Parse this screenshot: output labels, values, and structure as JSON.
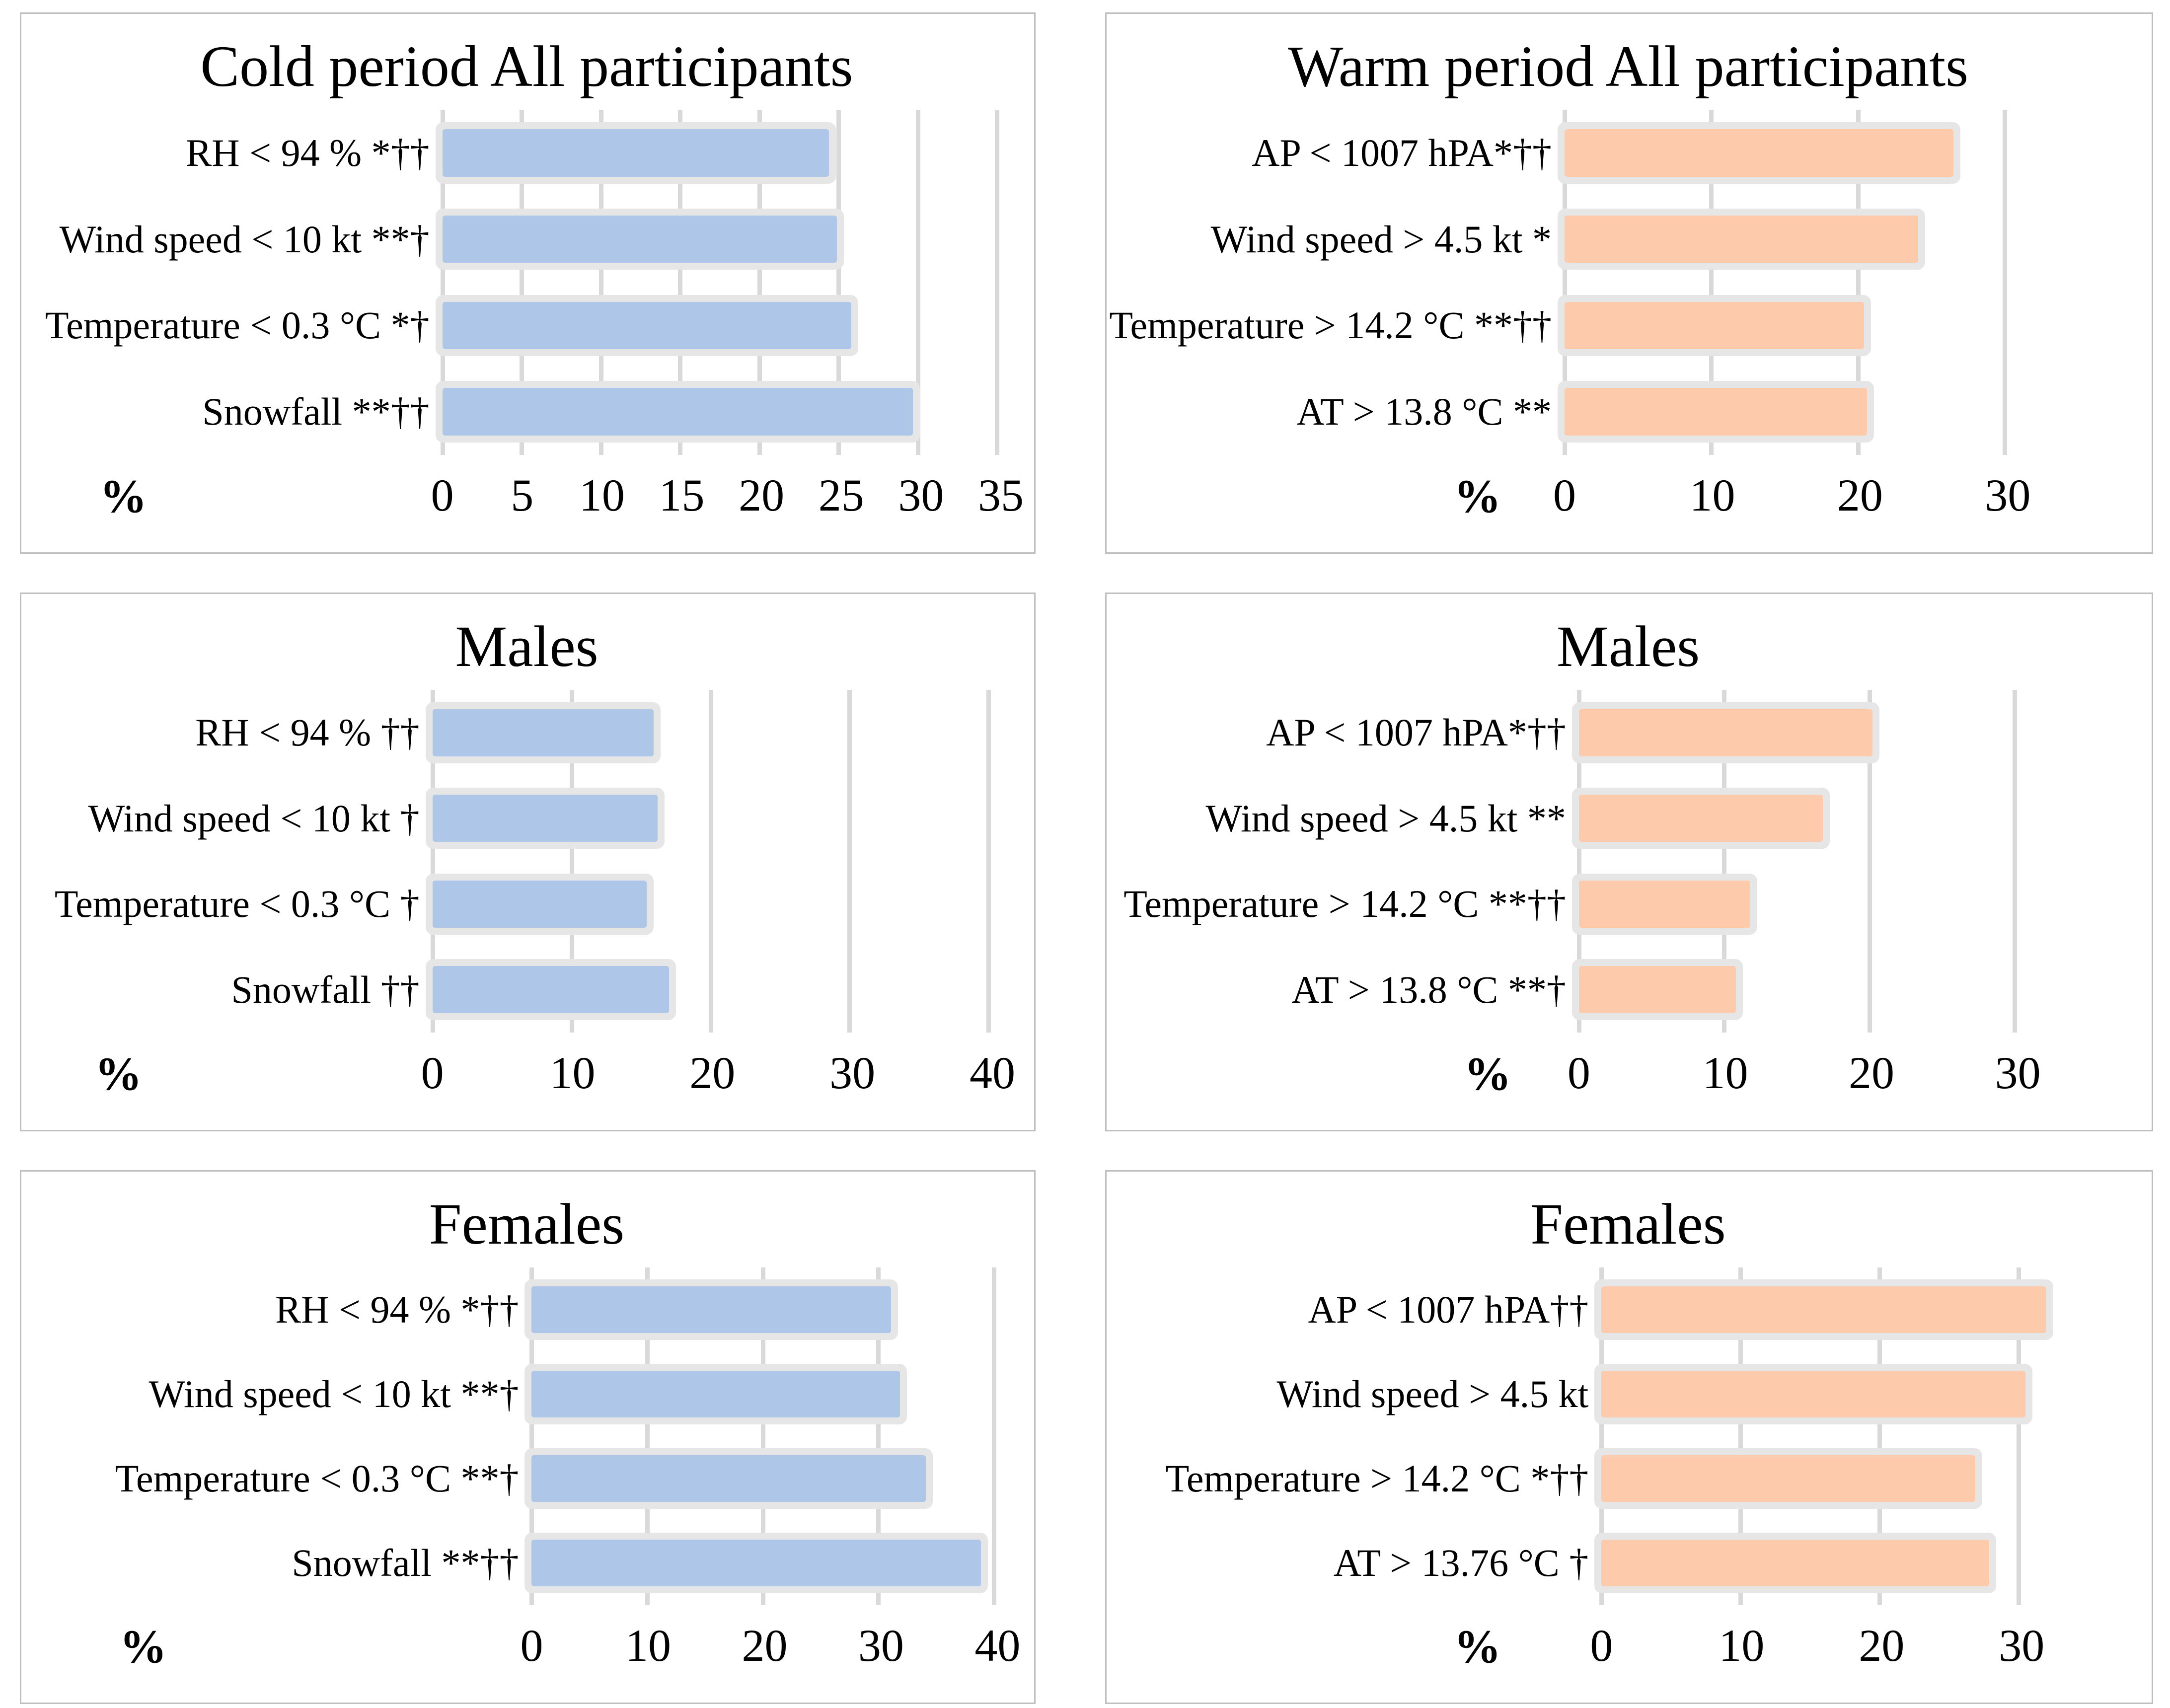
{
  "figure": {
    "description": "Six horizontal bar charts: cold period (blue, left column) and warm period (orange, right column) for All participants, Males and Females"
  },
  "colors": {
    "cold_bar_fill": "#AEC6E8",
    "warm_bar_fill": "#FDCBAC",
    "bar_outline": "#E6E6E6",
    "gridline": "#D9D9D9",
    "panel_border": "#BFBFBF",
    "text": "#000000"
  },
  "chart_data": [
    {
      "id": "cold-period-all",
      "type": "bar",
      "title": "Cold period All participants",
      "xlabel": "%",
      "categories": [
        "RH < 94 % *††",
        "Wind speed < 10 kt **†",
        "Temperature < 0.3 °C *†",
        "Snowfall **††"
      ],
      "values": [
        24.4,
        24.9,
        25.8,
        29.7
      ],
      "ticks": [
        0,
        5,
        10,
        15,
        20,
        25,
        30,
        35
      ],
      "bar_color": "#AEC6E8",
      "grid": true,
      "layout": {
        "axis_max": 36.4,
        "gutter_pct": 41.5,
        "pct_label_x": 7
      }
    },
    {
      "id": "warm-period-all",
      "type": "bar",
      "title": "Warm period All participants",
      "xlabel": "%",
      "categories": [
        "AP < 1007 hPA*††",
        "Wind speed > 4.5 kt *",
        "Temperature > 14.2 °C **††",
        "AT > 13.8 °C **"
      ],
      "values": [
        26.5,
        24.1,
        20.4,
        20.6
      ],
      "ticks": [
        0,
        10,
        20,
        30
      ],
      "bar_color": "#FDCBAC",
      "grid": true,
      "layout": {
        "axis_max": 39.0,
        "gutter_pct": 43.8,
        "pct_label_x": 33
      }
    },
    {
      "id": "males-cold",
      "type": "bar",
      "title": "Males",
      "xlabel": "%",
      "categories": [
        "RH < 94 % ††",
        "Wind speed < 10 kt †",
        "Temperature < 0.3 °C †",
        "Snowfall ††"
      ],
      "values": [
        15.9,
        16.2,
        15.4,
        17.0
      ],
      "ticks": [
        0,
        10,
        20,
        30,
        40
      ],
      "bar_color": "#AEC6E8",
      "grid": true,
      "layout": {
        "axis_max": 42.2,
        "gutter_pct": 40.5,
        "pct_label_x": 6.5
      }
    },
    {
      "id": "males-warm",
      "type": "bar",
      "title": "Males",
      "xlabel": "%",
      "categories": [
        "AP < 1007 hPA*††",
        "Wind speed > 4.5 kt **",
        "Temperature > 14.2 °C **††",
        "AT > 13.8 °C **†"
      ],
      "values": [
        20.2,
        16.8,
        11.8,
        10.8
      ],
      "ticks": [
        0,
        10,
        20,
        30
      ],
      "bar_color": "#FDCBAC",
      "grid": true,
      "layout": {
        "axis_max": 38.4,
        "gutter_pct": 45.2,
        "pct_label_x": 34
      }
    },
    {
      "id": "females-cold",
      "type": "bar",
      "title": "Females",
      "xlabel": "%",
      "categories": [
        "RH < 94 % *††",
        "Wind speed < 10 kt **†",
        "Temperature < 0.3 °C **†",
        "Snowfall **††"
      ],
      "values": [
        31.1,
        31.9,
        34.1,
        38.9
      ],
      "ticks": [
        0,
        10,
        20,
        30,
        40
      ],
      "bar_color": "#AEC6E8",
      "grid": true,
      "layout": {
        "axis_max": 42.2,
        "gutter_pct": 50.5,
        "pct_label_x": 9
      }
    },
    {
      "id": "females-warm",
      "type": "bar",
      "title": "Females",
      "xlabel": "%",
      "categories": [
        "AP < 1007 hPA††",
        "Wind speed > 4.5 kt",
        "Temperature > 14.2 °C *††",
        "AT > 13.76 °C †"
      ],
      "values": [
        32.0,
        30.5,
        26.9,
        27.9
      ],
      "ticks": [
        0,
        10,
        20,
        30
      ],
      "bar_color": "#FDCBAC",
      "grid": true,
      "layout": {
        "axis_max": 38.5,
        "gutter_pct": 47.4,
        "pct_label_x": 33
      }
    }
  ]
}
